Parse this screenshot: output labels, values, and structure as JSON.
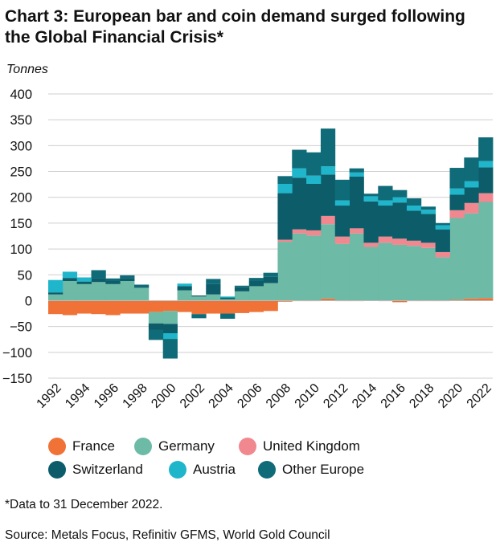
{
  "title": "Chart 3: European bar and coin demand surged following the Global Financial Crisis*",
  "footnote": "*Data to 31 December 2022.",
  "source": "Source: Metals Focus, Refinitiv GFMS, World Gold Council",
  "chart_data": {
    "type": "bar",
    "stacked": true,
    "ylabel": "Tonnes",
    "xlabel": "",
    "ylim": [
      -150,
      400
    ],
    "yticks": [
      400,
      350,
      300,
      250,
      200,
      150,
      100,
      50,
      0,
      -50,
      -100,
      -150
    ],
    "xtick_labels": [
      "1992",
      "1994",
      "1996",
      "1998",
      "2000",
      "2002",
      "2004",
      "2006",
      "2008",
      "2010",
      "2012",
      "2014",
      "2016",
      "2018",
      "2020",
      "2022"
    ],
    "legend_position": "bottom",
    "grid": "horizontal",
    "categories": [
      "1992",
      "1993",
      "1994",
      "1995",
      "1996",
      "1997",
      "1998",
      "1999",
      "2000",
      "2001",
      "2002",
      "2003",
      "2004",
      "2005",
      "2006",
      "2007",
      "2008",
      "2009",
      "2010",
      "2011",
      "2012",
      "2013",
      "2014",
      "2015",
      "2016",
      "2017",
      "2018",
      "2019",
      "2020",
      "2021",
      "2022"
    ],
    "series": [
      {
        "name": "France",
        "color": "#f07236",
        "values": [
          -26,
          -28,
          -25,
          -26,
          -28,
          -25,
          -25,
          -22,
          -20,
          -22,
          -26,
          -25,
          -25,
          -24,
          -22,
          -20,
          -2,
          -1,
          -1,
          4,
          -1,
          -1,
          0,
          -1,
          -3,
          -1,
          -1,
          -1,
          2,
          4,
          5
        ]
      },
      {
        "name": "Germany",
        "color": "#6dbaa6",
        "values": [
          12,
          38,
          32,
          36,
          32,
          38,
          25,
          -22,
          -25,
          20,
          8,
          12,
          3,
          18,
          28,
          34,
          114,
          130,
          126,
          144,
          110,
          130,
          104,
          112,
          108,
          106,
          102,
          84,
          158,
          165,
          186
        ]
      },
      {
        "name": "United Kingdom",
        "color": "#f1878f",
        "values": [
          0,
          0,
          0,
          0,
          0,
          0,
          0,
          0,
          0,
          0,
          0,
          0,
          0,
          0,
          0,
          0,
          4,
          8,
          10,
          16,
          14,
          10,
          8,
          12,
          12,
          10,
          10,
          10,
          15,
          20,
          17
        ]
      },
      {
        "name": "Switzerland",
        "color": "#0c5d69",
        "values": [
          4,
          6,
          5,
          8,
          6,
          6,
          3,
          -12,
          -18,
          8,
          2,
          20,
          3,
          8,
          10,
          12,
          90,
          100,
          90,
          80,
          60,
          100,
          80,
          60,
          70,
          58,
          56,
          44,
          30,
          30,
          50
        ]
      },
      {
        "name": "Austria",
        "color": "#1fb6cc",
        "values": [
          24,
          12,
          8,
          0,
          0,
          0,
          0,
          0,
          -11,
          5,
          0,
          0,
          2,
          0,
          0,
          0,
          18,
          18,
          16,
          16,
          10,
          8,
          10,
          10,
          10,
          10,
          8,
          8,
          12,
          12,
          12
        ]
      },
      {
        "name": "Other Europe",
        "color": "#0f6b78",
        "values": [
          0,
          0,
          0,
          15,
          5,
          5,
          3,
          -20,
          -38,
          0,
          -8,
          10,
          -10,
          3,
          6,
          8,
          15,
          36,
          45,
          73,
          40,
          8,
          5,
          28,
          14,
          14,
          6,
          4,
          40,
          46,
          46
        ]
      }
    ]
  }
}
